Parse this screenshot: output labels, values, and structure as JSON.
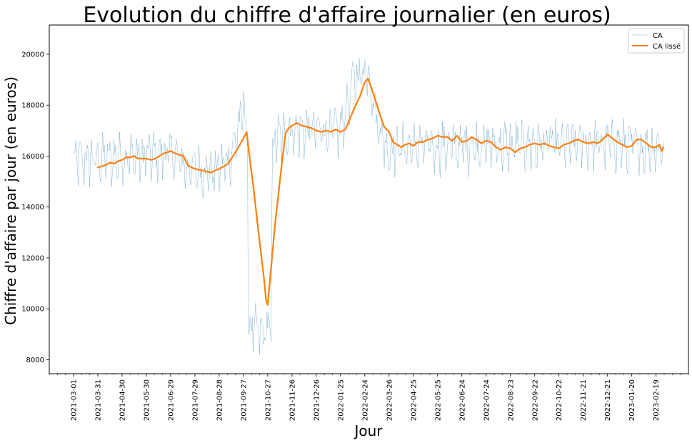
{
  "chart_data": {
    "type": "line",
    "title": "Evolution du chiffre d'affaire journalier (en euros)",
    "xlabel": "Jour",
    "ylabel": "Chiffre d'affaire par jour (en euros)",
    "x_ticks": [
      "2021-03-01",
      "2021-03-31",
      "2021-04-30",
      "2021-05-30",
      "2021-06-29",
      "2021-07-29",
      "2021-08-28",
      "2021-09-27",
      "2021-10-27",
      "2021-11-26",
      "2021-12-26",
      "2022-01-25",
      "2022-02-24",
      "2022-03-26",
      "2022-04-25",
      "2022-05-25",
      "2022-06-24",
      "2022-07-24",
      "2022-08-23",
      "2022-09-22",
      "2022-10-22",
      "2022-11-21",
      "2022-12-21",
      "2023-01-20",
      "2023-02-19"
    ],
    "y_ticks": [
      8000,
      10000,
      12000,
      14000,
      16000,
      18000,
      20000
    ],
    "ylim": [
      7450,
      21150
    ],
    "xlim": [
      "2021-01-30",
      "2023-03-31"
    ],
    "grid": false,
    "legend_position": "top-right",
    "series": [
      {
        "name": "CA",
        "color": "#1f77b4",
        "style": "thin-light",
        "x_start": "2021-03-01",
        "x_end": "2023-02-28",
        "keypoints": [
          [
            "2021-03-01",
            15800
          ],
          [
            "2021-04-15",
            15900
          ],
          [
            "2021-06-01",
            16000
          ],
          [
            "2021-07-01",
            16100
          ],
          [
            "2021-07-20",
            15500
          ],
          [
            "2021-08-20",
            15400
          ],
          [
            "2021-09-10",
            15800
          ],
          [
            "2021-09-28",
            18000
          ],
          [
            "2021-10-02",
            16500
          ],
          [
            "2021-10-03",
            9300
          ],
          [
            "2021-10-20",
            9000
          ],
          [
            "2021-10-31",
            9300
          ],
          [
            "2021-11-02",
            16500
          ],
          [
            "2021-11-20",
            17000
          ],
          [
            "2022-01-25",
            17000
          ],
          [
            "2022-02-10",
            19000
          ],
          [
            "2022-02-28",
            19500
          ],
          [
            "2022-03-10",
            17500
          ],
          [
            "2022-03-22",
            16300
          ],
          [
            "2022-06-01",
            16400
          ],
          [
            "2022-12-20",
            16500
          ],
          [
            "2023-02-28",
            16300
          ]
        ],
        "noise_amplitude": 1200
      },
      {
        "name": "CA lissé",
        "color": "#ff7f0e",
        "points": [
          [
            "2021-03-31",
            15550
          ],
          [
            "2021-04-05",
            15600
          ],
          [
            "2021-04-10",
            15650
          ],
          [
            "2021-04-15",
            15750
          ],
          [
            "2021-04-20",
            15700
          ],
          [
            "2021-04-25",
            15800
          ],
          [
            "2021-04-30",
            15850
          ],
          [
            "2021-05-05",
            15950
          ],
          [
            "2021-05-10",
            15950
          ],
          [
            "2021-05-15",
            16000
          ],
          [
            "2021-05-20",
            15900
          ],
          [
            "2021-05-25",
            15900
          ],
          [
            "2021-05-30",
            15900
          ],
          [
            "2021-06-05",
            15850
          ],
          [
            "2021-06-10",
            15900
          ],
          [
            "2021-06-15",
            16000
          ],
          [
            "2021-06-20",
            16100
          ],
          [
            "2021-06-25",
            16150
          ],
          [
            "2021-06-29",
            16200
          ],
          [
            "2021-07-05",
            16100
          ],
          [
            "2021-07-10",
            16050
          ],
          [
            "2021-07-15",
            16000
          ],
          [
            "2021-07-20",
            15650
          ],
          [
            "2021-07-25",
            15550
          ],
          [
            "2021-07-29",
            15500
          ],
          [
            "2021-08-05",
            15450
          ],
          [
            "2021-08-12",
            15400
          ],
          [
            "2021-08-18",
            15350
          ],
          [
            "2021-08-24",
            15450
          ],
          [
            "2021-08-28",
            15500
          ],
          [
            "2021-09-03",
            15600
          ],
          [
            "2021-09-08",
            15700
          ],
          [
            "2021-09-14",
            16000
          ],
          [
            "2021-09-20",
            16300
          ],
          [
            "2021-09-27",
            16700
          ],
          [
            "2021-10-01",
            16950
          ],
          [
            "2021-10-04",
            16100
          ],
          [
            "2021-10-10",
            14600
          ],
          [
            "2021-10-16",
            12900
          ],
          [
            "2021-10-22",
            11300
          ],
          [
            "2021-10-25",
            10350
          ],
          [
            "2021-10-27",
            10150
          ],
          [
            "2021-10-30",
            11200
          ],
          [
            "2021-11-05",
            13300
          ],
          [
            "2021-11-12",
            15300
          ],
          [
            "2021-11-18",
            16900
          ],
          [
            "2021-11-22",
            17100
          ],
          [
            "2021-11-26",
            17200
          ],
          [
            "2021-12-02",
            17300
          ],
          [
            "2021-12-08",
            17200
          ],
          [
            "2021-12-14",
            17150
          ],
          [
            "2021-12-20",
            17100
          ],
          [
            "2021-12-26",
            17000
          ],
          [
            "2022-01-01",
            16950
          ],
          [
            "2022-01-07",
            17000
          ],
          [
            "2022-01-13",
            16950
          ],
          [
            "2022-01-19",
            17050
          ],
          [
            "2022-01-25",
            16950
          ],
          [
            "2022-01-31",
            17050
          ],
          [
            "2022-02-06",
            17500
          ],
          [
            "2022-02-12",
            17950
          ],
          [
            "2022-02-18",
            18350
          ],
          [
            "2022-02-24",
            18900
          ],
          [
            "2022-02-28",
            19050
          ],
          [
            "2022-03-05",
            18600
          ],
          [
            "2022-03-10",
            18100
          ],
          [
            "2022-03-15",
            17600
          ],
          [
            "2022-03-20",
            17150
          ],
          [
            "2022-03-26",
            16950
          ],
          [
            "2022-03-31",
            16550
          ],
          [
            "2022-04-05",
            16450
          ],
          [
            "2022-04-10",
            16350
          ],
          [
            "2022-04-15",
            16450
          ],
          [
            "2022-04-20",
            16500
          ],
          [
            "2022-04-25",
            16400
          ],
          [
            "2022-05-01",
            16550
          ],
          [
            "2022-05-07",
            16550
          ],
          [
            "2022-05-13",
            16650
          ],
          [
            "2022-05-19",
            16700
          ],
          [
            "2022-05-25",
            16800
          ],
          [
            "2022-05-31",
            16750
          ],
          [
            "2022-06-06",
            16750
          ],
          [
            "2022-06-12",
            16600
          ],
          [
            "2022-06-18",
            16800
          ],
          [
            "2022-06-24",
            16550
          ],
          [
            "2022-06-30",
            16600
          ],
          [
            "2022-07-06",
            16750
          ],
          [
            "2022-07-12",
            16650
          ],
          [
            "2022-07-18",
            16500
          ],
          [
            "2022-07-24",
            16600
          ],
          [
            "2022-07-30",
            16550
          ],
          [
            "2022-08-05",
            16350
          ],
          [
            "2022-08-11",
            16250
          ],
          [
            "2022-08-17",
            16350
          ],
          [
            "2022-08-23",
            16300
          ],
          [
            "2022-08-29",
            16150
          ],
          [
            "2022-09-04",
            16300
          ],
          [
            "2022-09-10",
            16350
          ],
          [
            "2022-09-16",
            16450
          ],
          [
            "2022-09-22",
            16500
          ],
          [
            "2022-09-28",
            16450
          ],
          [
            "2022-10-04",
            16500
          ],
          [
            "2022-10-10",
            16400
          ],
          [
            "2022-10-16",
            16350
          ],
          [
            "2022-10-22",
            16300
          ],
          [
            "2022-10-28",
            16450
          ],
          [
            "2022-11-03",
            16500
          ],
          [
            "2022-11-09",
            16600
          ],
          [
            "2022-11-15",
            16650
          ],
          [
            "2022-11-21",
            16550
          ],
          [
            "2022-11-27",
            16500
          ],
          [
            "2022-12-03",
            16550
          ],
          [
            "2022-12-09",
            16500
          ],
          [
            "2022-12-15",
            16650
          ],
          [
            "2022-12-21",
            16850
          ],
          [
            "2022-12-27",
            16700
          ],
          [
            "2023-01-02",
            16550
          ],
          [
            "2023-01-08",
            16450
          ],
          [
            "2023-01-14",
            16350
          ],
          [
            "2023-01-20",
            16400
          ],
          [
            "2023-01-26",
            16650
          ],
          [
            "2023-02-01",
            16650
          ],
          [
            "2023-02-07",
            16500
          ],
          [
            "2023-02-13",
            16350
          ],
          [
            "2023-02-19",
            16350
          ],
          [
            "2023-02-23",
            16450
          ],
          [
            "2023-02-26",
            16200
          ],
          [
            "2023-02-28",
            16350
          ]
        ]
      }
    ]
  }
}
